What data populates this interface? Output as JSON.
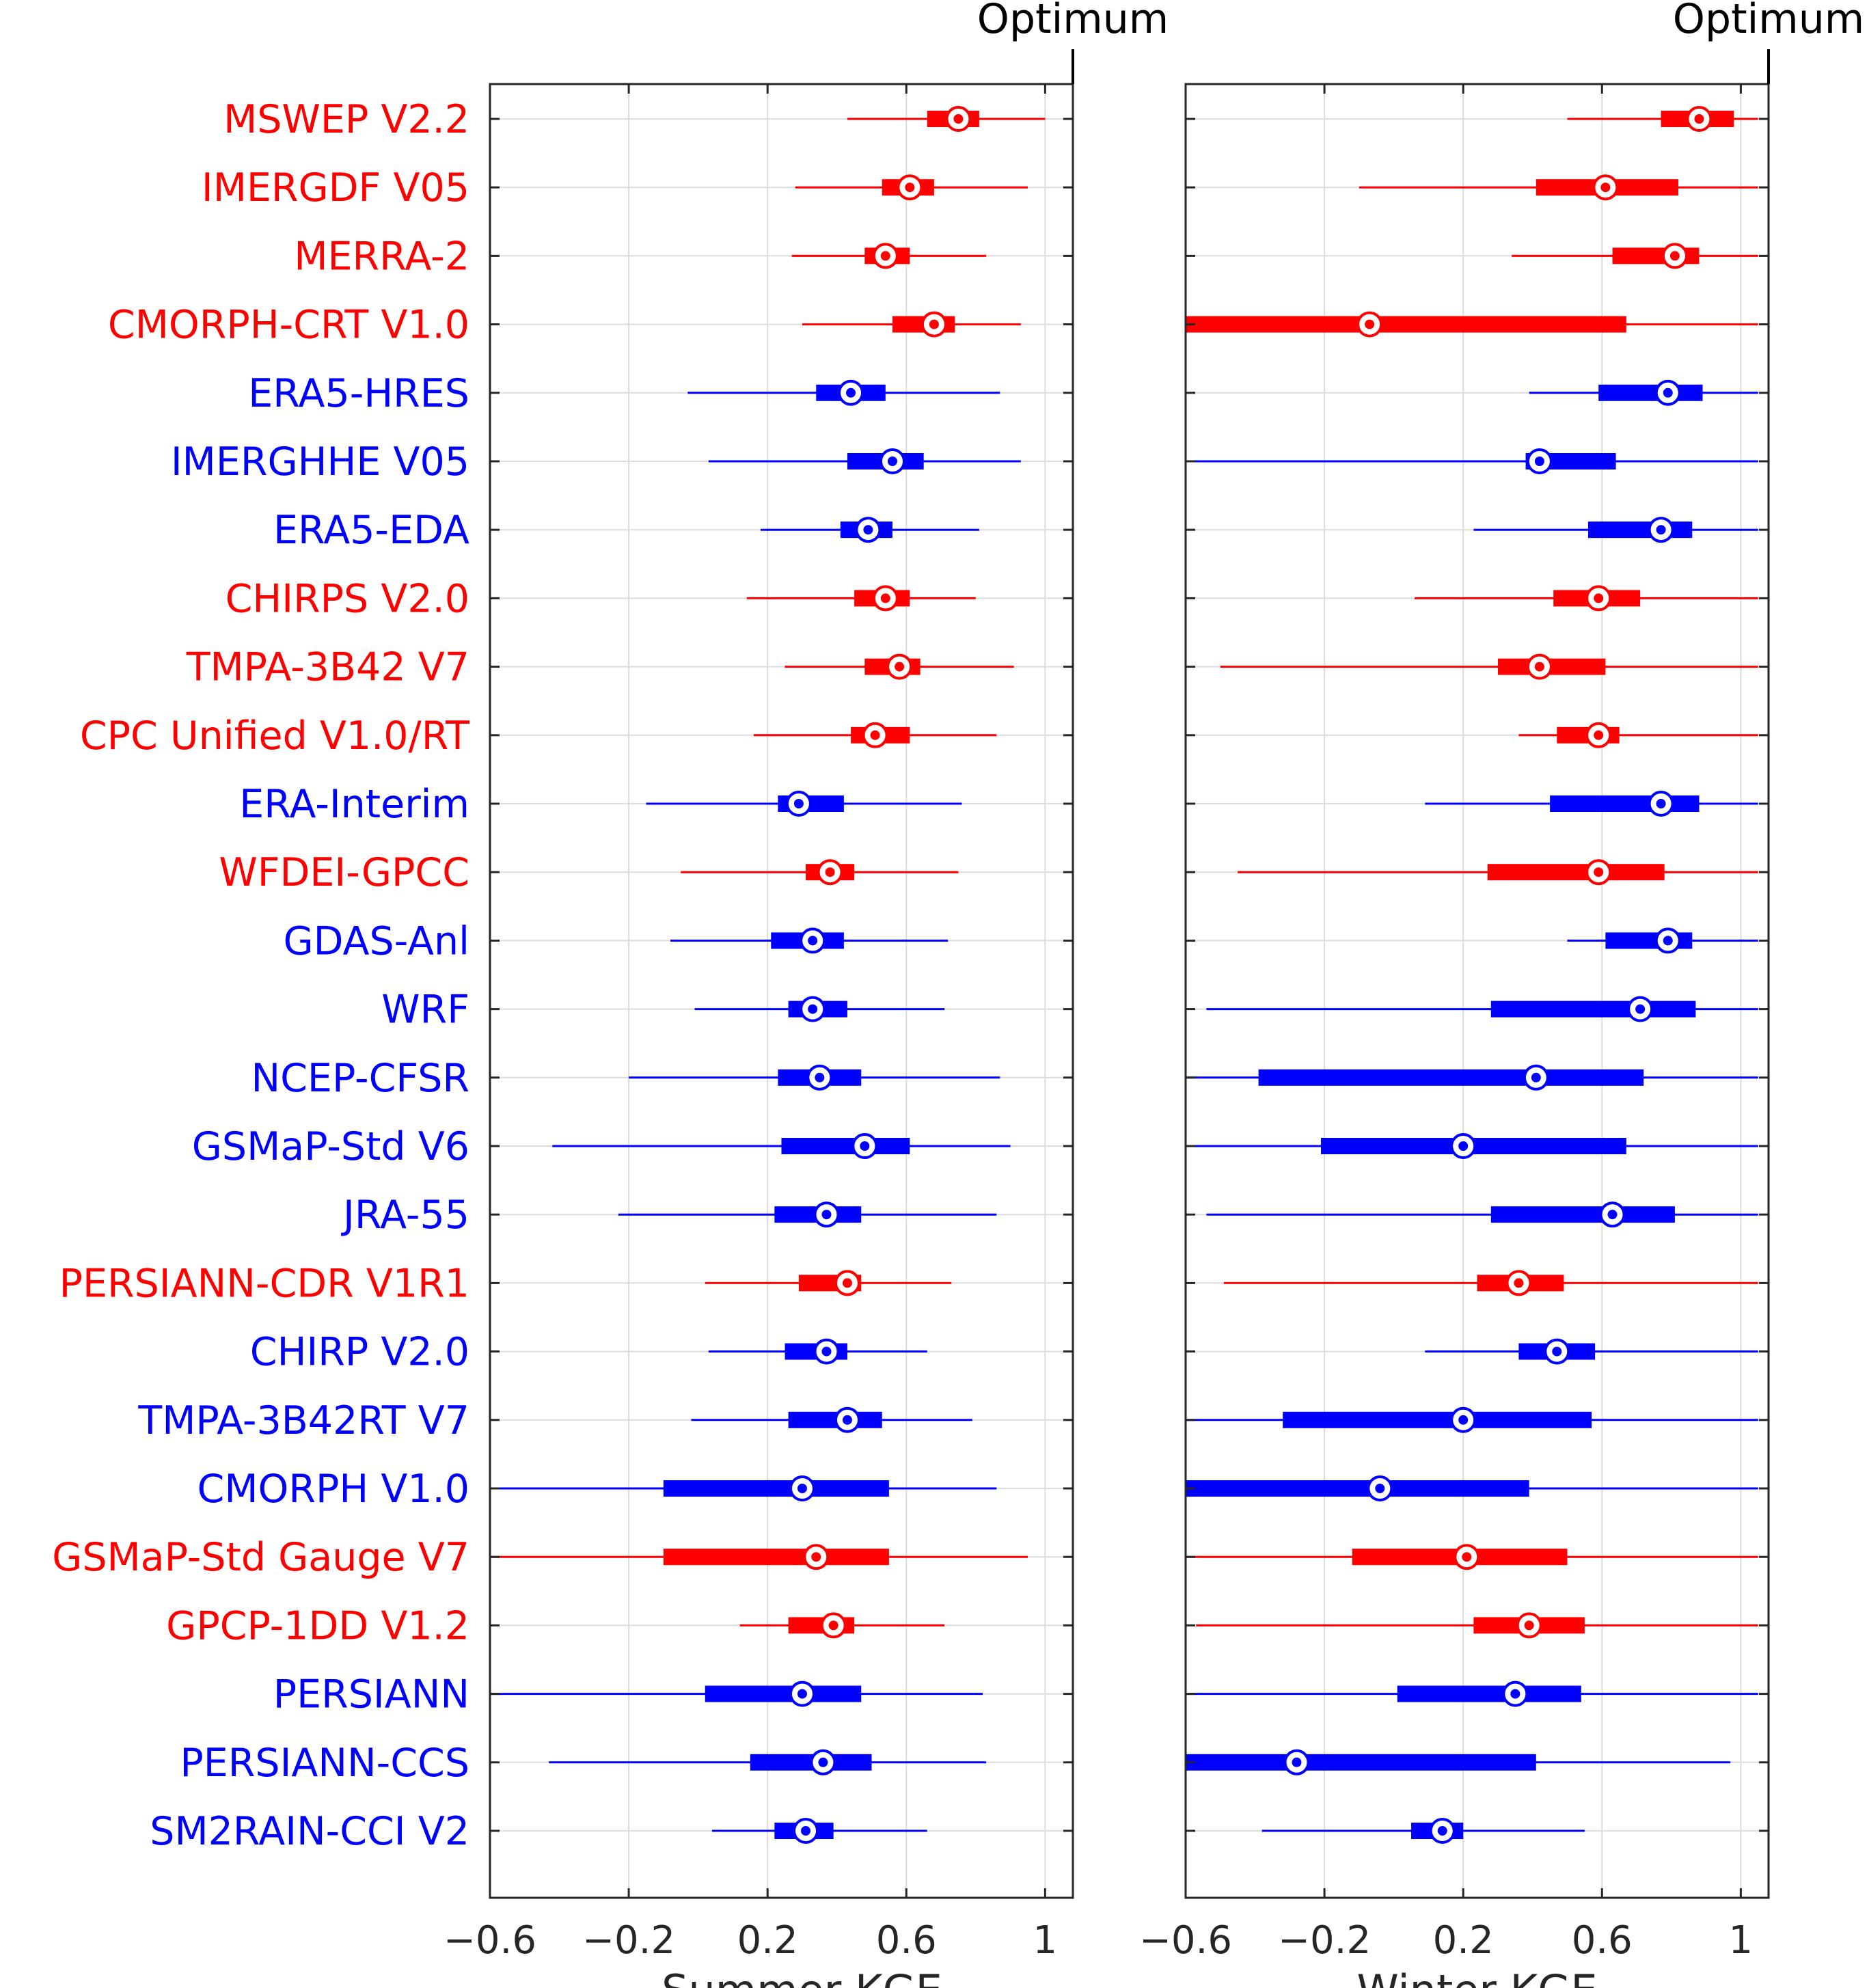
{
  "chart_data": [
    {
      "type": "boxplot",
      "xlabel": "Summer KGE",
      "xlim": [
        -0.6,
        1.08
      ],
      "xticks": [
        -0.6,
        -0.2,
        0.2,
        0.6,
        1
      ],
      "xtick_labels": [
        "−0.6",
        "−0.2",
        "0.2",
        "0.6",
        "1"
      ],
      "optimum": {
        "label": "Optimum",
        "value": 1.08
      },
      "grid": true,
      "datasets": [
        {
          "name": "MSWEP V2.2",
          "color": "red",
          "whisker_low": 0.43,
          "q1": 0.66,
          "median": 0.75,
          "q3": 0.81,
          "whisker_high": 1.0
        },
        {
          "name": "IMERGDF V05",
          "color": "red",
          "whisker_low": 0.28,
          "q1": 0.53,
          "median": 0.61,
          "q3": 0.68,
          "whisker_high": 0.95
        },
        {
          "name": "MERRA-2",
          "color": "red",
          "whisker_low": 0.27,
          "q1": 0.48,
          "median": 0.54,
          "q3": 0.61,
          "whisker_high": 0.83
        },
        {
          "name": "CMORPH-CRT V1.0",
          "color": "red",
          "whisker_low": 0.3,
          "q1": 0.56,
          "median": 0.68,
          "q3": 0.74,
          "whisker_high": 0.93
        },
        {
          "name": "ERA5-HRES",
          "color": "blue",
          "whisker_low": -0.03,
          "q1": 0.34,
          "median": 0.44,
          "q3": 0.54,
          "whisker_high": 0.87
        },
        {
          "name": "IMERGHHE V05",
          "color": "blue",
          "whisker_low": 0.03,
          "q1": 0.43,
          "median": 0.56,
          "q3": 0.65,
          "whisker_high": 0.93
        },
        {
          "name": "ERA5-EDA",
          "color": "blue",
          "whisker_low": 0.18,
          "q1": 0.41,
          "median": 0.49,
          "q3": 0.56,
          "whisker_high": 0.81
        },
        {
          "name": "CHIRPS V2.0",
          "color": "red",
          "whisker_low": 0.14,
          "q1": 0.45,
          "median": 0.54,
          "q3": 0.61,
          "whisker_high": 0.8
        },
        {
          "name": "TMPA-3B42 V7",
          "color": "red",
          "whisker_low": 0.25,
          "q1": 0.48,
          "median": 0.58,
          "q3": 0.64,
          "whisker_high": 0.91
        },
        {
          "name": "CPC Unified V1.0/RT",
          "color": "red",
          "whisker_low": 0.16,
          "q1": 0.44,
          "median": 0.51,
          "q3": 0.61,
          "whisker_high": 0.86
        },
        {
          "name": "ERA-Interim",
          "color": "blue",
          "whisker_low": -0.15,
          "q1": 0.23,
          "median": 0.29,
          "q3": 0.42,
          "whisker_high": 0.76
        },
        {
          "name": "WFDEI-GPCC",
          "color": "red",
          "whisker_low": -0.05,
          "q1": 0.31,
          "median": 0.38,
          "q3": 0.45,
          "whisker_high": 0.75
        },
        {
          "name": "GDAS-Anl",
          "color": "blue",
          "whisker_low": -0.08,
          "q1": 0.21,
          "median": 0.33,
          "q3": 0.42,
          "whisker_high": 0.72
        },
        {
          "name": "WRF",
          "color": "blue",
          "whisker_low": -0.01,
          "q1": 0.26,
          "median": 0.33,
          "q3": 0.43,
          "whisker_high": 0.71
        },
        {
          "name": "NCEP-CFSR",
          "color": "blue",
          "whisker_low": -0.2,
          "q1": 0.23,
          "median": 0.35,
          "q3": 0.47,
          "whisker_high": 0.87
        },
        {
          "name": "GSMaP-Std V6",
          "color": "blue",
          "whisker_low": -0.42,
          "q1": 0.24,
          "median": 0.48,
          "q3": 0.61,
          "whisker_high": 0.9
        },
        {
          "name": "JRA-55",
          "color": "blue",
          "whisker_low": -0.23,
          "q1": 0.22,
          "median": 0.37,
          "q3": 0.47,
          "whisker_high": 0.86
        },
        {
          "name": "PERSIANN-CDR V1R1",
          "color": "red",
          "whisker_low": 0.02,
          "q1": 0.29,
          "median": 0.43,
          "q3": 0.47,
          "whisker_high": 0.73
        },
        {
          "name": "CHIRP V2.0",
          "color": "blue",
          "whisker_low": 0.03,
          "q1": 0.25,
          "median": 0.37,
          "q3": 0.43,
          "whisker_high": 0.66
        },
        {
          "name": "TMPA-3B42RT V7",
          "color": "blue",
          "whisker_low": -0.02,
          "q1": 0.26,
          "median": 0.43,
          "q3": 0.53,
          "whisker_high": 0.79
        },
        {
          "name": "CMORPH V1.0",
          "color": "blue",
          "whisker_low": -0.6,
          "q1": -0.1,
          "median": 0.3,
          "q3": 0.55,
          "whisker_high": 0.86
        },
        {
          "name": "GSMaP-Std Gauge V7",
          "color": "red",
          "whisker_low": -0.6,
          "q1": -0.1,
          "median": 0.34,
          "q3": 0.55,
          "whisker_high": 0.95
        },
        {
          "name": "GPCP-1DD V1.2",
          "color": "red",
          "whisker_low": 0.12,
          "q1": 0.26,
          "median": 0.39,
          "q3": 0.45,
          "whisker_high": 0.71
        },
        {
          "name": "PERSIANN",
          "color": "blue",
          "whisker_low": -0.6,
          "q1": 0.02,
          "median": 0.3,
          "q3": 0.47,
          "whisker_high": 0.82
        },
        {
          "name": "PERSIANN-CCS",
          "color": "blue",
          "whisker_low": -0.43,
          "q1": 0.15,
          "median": 0.36,
          "q3": 0.5,
          "whisker_high": 0.83
        },
        {
          "name": "SM2RAIN-CCI V2",
          "color": "blue",
          "whisker_low": 0.04,
          "q1": 0.22,
          "median": 0.31,
          "q3": 0.39,
          "whisker_high": 0.66
        }
      ]
    },
    {
      "type": "boxplot",
      "xlabel": "Winter KGE",
      "xlim": [
        -0.6,
        1.08
      ],
      "xticks": [
        -0.6,
        -0.2,
        0.2,
        0.6,
        1
      ],
      "xtick_labels": [
        "−0.6",
        "−0.2",
        "0.2",
        "0.6",
        "1"
      ],
      "optimum": {
        "label": "Optimum",
        "value": 1.08
      },
      "grid": true,
      "datasets": [
        {
          "name": "MSWEP V2.2",
          "color": "red",
          "whisker_low": 0.5,
          "q1": 0.77,
          "median": 0.88,
          "q3": 0.98,
          "whisker_high": 1.05
        },
        {
          "name": "IMERGDF V05",
          "color": "red",
          "whisker_low": -0.1,
          "q1": 0.41,
          "median": 0.61,
          "q3": 0.82,
          "whisker_high": 1.05
        },
        {
          "name": "MERRA-2",
          "color": "red",
          "whisker_low": 0.34,
          "q1": 0.63,
          "median": 0.81,
          "q3": 0.88,
          "whisker_high": 1.05
        },
        {
          "name": "CMORPH-CRT V1.0",
          "color": "red",
          "whisker_low": -0.6,
          "q1": -0.6,
          "median": -0.07,
          "q3": 0.67,
          "whisker_high": 1.05
        },
        {
          "name": "ERA5-HRES",
          "color": "blue",
          "whisker_low": 0.39,
          "q1": 0.59,
          "median": 0.79,
          "q3": 0.89,
          "whisker_high": 1.05
        },
        {
          "name": "IMERGHHE V05",
          "color": "blue",
          "whisker_low": -0.6,
          "q1": 0.38,
          "median": 0.42,
          "q3": 0.64,
          "whisker_high": 1.05
        },
        {
          "name": "ERA5-EDA",
          "color": "blue",
          "whisker_low": 0.23,
          "q1": 0.56,
          "median": 0.77,
          "q3": 0.86,
          "whisker_high": 1.05
        },
        {
          "name": "CHIRPS V2.0",
          "color": "red",
          "whisker_low": 0.06,
          "q1": 0.46,
          "median": 0.59,
          "q3": 0.71,
          "whisker_high": 1.05
        },
        {
          "name": "TMPA-3B42 V7",
          "color": "red",
          "whisker_low": -0.5,
          "q1": 0.3,
          "median": 0.42,
          "q3": 0.61,
          "whisker_high": 1.05
        },
        {
          "name": "CPC Unified V1.0/RT",
          "color": "red",
          "whisker_low": 0.36,
          "q1": 0.47,
          "median": 0.59,
          "q3": 0.65,
          "whisker_high": 1.05
        },
        {
          "name": "ERA-Interim",
          "color": "blue",
          "whisker_low": 0.09,
          "q1": 0.45,
          "median": 0.77,
          "q3": 0.88,
          "whisker_high": 1.05
        },
        {
          "name": "WFDEI-GPCC",
          "color": "red",
          "whisker_low": -0.45,
          "q1": 0.27,
          "median": 0.59,
          "q3": 0.78,
          "whisker_high": 1.05
        },
        {
          "name": "GDAS-Anl",
          "color": "blue",
          "whisker_low": 0.5,
          "q1": 0.61,
          "median": 0.79,
          "q3": 0.86,
          "whisker_high": 1.05
        },
        {
          "name": "WRF",
          "color": "blue",
          "whisker_low": -0.54,
          "q1": 0.28,
          "median": 0.71,
          "q3": 0.87,
          "whisker_high": 1.05
        },
        {
          "name": "NCEP-CFSR",
          "color": "blue",
          "whisker_low": -0.6,
          "q1": -0.39,
          "median": 0.41,
          "q3": 0.72,
          "whisker_high": 1.05
        },
        {
          "name": "GSMaP-Std V6",
          "color": "blue",
          "whisker_low": -0.6,
          "q1": -0.21,
          "median": 0.2,
          "q3": 0.67,
          "whisker_high": 1.05
        },
        {
          "name": "JRA-55",
          "color": "blue",
          "whisker_low": -0.54,
          "q1": 0.28,
          "median": 0.63,
          "q3": 0.81,
          "whisker_high": 1.05
        },
        {
          "name": "PERSIANN-CDR V1R1",
          "color": "red",
          "whisker_low": -0.49,
          "q1": 0.24,
          "median": 0.36,
          "q3": 0.49,
          "whisker_high": 1.05
        },
        {
          "name": "CHIRP V2.0",
          "color": "blue",
          "whisker_low": 0.09,
          "q1": 0.36,
          "median": 0.47,
          "q3": 0.58,
          "whisker_high": 1.05
        },
        {
          "name": "TMPA-3B42RT V7",
          "color": "blue",
          "whisker_low": -0.6,
          "q1": -0.32,
          "median": 0.2,
          "q3": 0.57,
          "whisker_high": 1.05
        },
        {
          "name": "CMORPH V1.0",
          "color": "blue",
          "whisker_low": -0.6,
          "q1": -0.6,
          "median": -0.04,
          "q3": 0.39,
          "whisker_high": 1.05
        },
        {
          "name": "GSMaP-Std Gauge V7",
          "color": "red",
          "whisker_low": -0.6,
          "q1": -0.12,
          "median": 0.21,
          "q3": 0.5,
          "whisker_high": 1.05
        },
        {
          "name": "GPCP-1DD V1.2",
          "color": "red",
          "whisker_low": -0.57,
          "q1": 0.23,
          "median": 0.39,
          "q3": 0.55,
          "whisker_high": 1.05
        },
        {
          "name": "PERSIANN",
          "color": "blue",
          "whisker_low": -0.6,
          "q1": 0.01,
          "median": 0.35,
          "q3": 0.54,
          "whisker_high": 1.05
        },
        {
          "name": "PERSIANN-CCS",
          "color": "blue",
          "whisker_low": -0.6,
          "q1": -0.6,
          "median": -0.28,
          "q3": 0.41,
          "whisker_high": 0.97
        },
        {
          "name": "SM2RAIN-CCI V2",
          "color": "blue",
          "whisker_low": -0.38,
          "q1": 0.05,
          "median": 0.14,
          "q3": 0.2,
          "whisker_high": 0.55
        }
      ]
    }
  ]
}
